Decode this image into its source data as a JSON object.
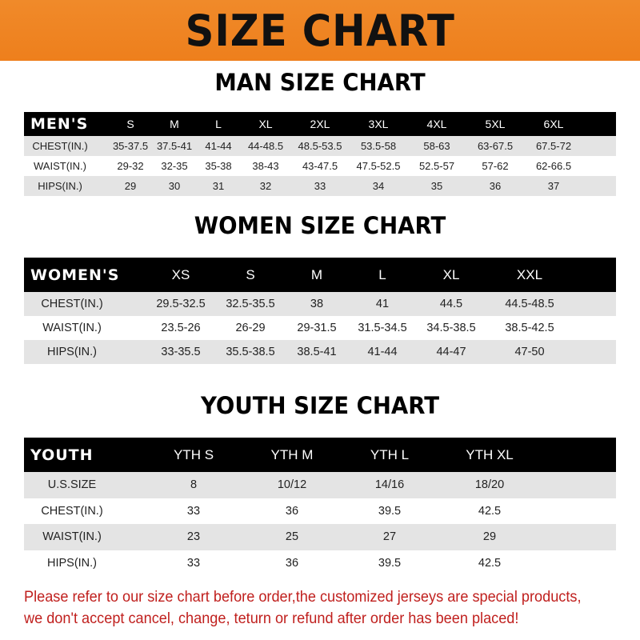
{
  "title": "SIZE CHART",
  "colors": {
    "banner": "#ef831f",
    "header_row": "#000000",
    "stripe": "#e4e4e4",
    "footer_text": "#c0201e"
  },
  "men": {
    "title": "MAN SIZE CHART",
    "header": [
      "MEN'S",
      "S",
      "M",
      "L",
      "XL",
      "2XL",
      "3XL",
      "4XL",
      "5XL",
      "6XL"
    ],
    "rows": [
      [
        "CHEST(IN.)",
        "35-37.5",
        "37.5-41",
        "41-44",
        "44-48.5",
        "48.5-53.5",
        "53.5-58",
        "58-63",
        "63-67.5",
        "67.5-72"
      ],
      [
        "WAIST(IN.)",
        "29-32",
        "32-35",
        "35-38",
        "38-43",
        "43-47.5",
        "47.5-52.5",
        "52.5-57",
        "57-62",
        "62-66.5"
      ],
      [
        "HIPS(IN.)",
        "29",
        "30",
        "31",
        "32",
        "33",
        "34",
        "35",
        "36",
        "37"
      ]
    ]
  },
  "women": {
    "title": "WOMEN SIZE CHART",
    "header": [
      "WOMEN'S",
      "XS",
      "S",
      "M",
      "L",
      "XL",
      "XXL"
    ],
    "rows": [
      [
        "CHEST(IN.)",
        "29.5-32.5",
        "32.5-35.5",
        "38",
        "41",
        "44.5",
        "44.5-48.5"
      ],
      [
        "WAIST(IN.)",
        "23.5-26",
        "26-29",
        "29-31.5",
        "31.5-34.5",
        "34.5-38.5",
        "38.5-42.5"
      ],
      [
        "HIPS(IN.)",
        "33-35.5",
        "35.5-38.5",
        "38.5-41",
        "41-44",
        "44-47",
        "47-50"
      ]
    ]
  },
  "youth": {
    "title": "YOUTH SIZE CHART",
    "header": [
      "YOUTH",
      "YTH S",
      "YTH M",
      "YTH L",
      "YTH XL"
    ],
    "rows": [
      [
        "U.S.SIZE",
        "8",
        "10/12",
        "14/16",
        "18/20"
      ],
      [
        "CHEST(IN.)",
        "33",
        "36",
        "39.5",
        "42.5"
      ],
      [
        "WAIST(IN.)",
        "23",
        "25",
        "27",
        "29"
      ],
      [
        "HIPS(IN.)",
        "33",
        "36",
        "39.5",
        "42.5"
      ]
    ]
  },
  "footer": {
    "line1": "Please refer to our size chart before order,the customized jerseys are special products,",
    "line2": "we don't accept cancel, change, teturn or refund after order has been placed!"
  }
}
